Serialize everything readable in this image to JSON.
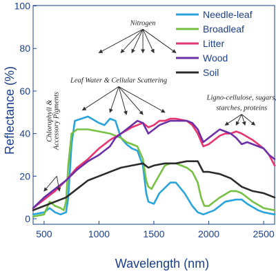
{
  "chart_data": {
    "type": "line",
    "title": "",
    "xlabel": "Wavelength (nm)",
    "ylabel": "Reflectance (%)",
    "xlim": [
      400,
      2600
    ],
    "ylim": [
      0,
      100
    ],
    "xticks": [
      500,
      1000,
      1500,
      2000,
      2500
    ],
    "yticks": [
      0,
      20,
      40,
      60,
      80,
      100
    ],
    "grid": false,
    "legend_position": "top-right",
    "series": [
      {
        "name": "Needle-leaf",
        "color": "#29a3dc",
        "points": [
          [
            400,
            2
          ],
          [
            500,
            3
          ],
          [
            550,
            5
          ],
          [
            600,
            3
          ],
          [
            650,
            2
          ],
          [
            700,
            3
          ],
          [
            720,
            10
          ],
          [
            750,
            35
          ],
          [
            780,
            46
          ],
          [
            900,
            48
          ],
          [
            1000,
            45
          ],
          [
            1050,
            44
          ],
          [
            1100,
            47
          ],
          [
            1150,
            46
          ],
          [
            1200,
            38
          ],
          [
            1250,
            35
          ],
          [
            1300,
            33
          ],
          [
            1350,
            32
          ],
          [
            1400,
            25
          ],
          [
            1430,
            12
          ],
          [
            1450,
            8
          ],
          [
            1500,
            7
          ],
          [
            1550,
            12
          ],
          [
            1650,
            17
          ],
          [
            1700,
            17
          ],
          [
            1780,
            12
          ],
          [
            1850,
            6
          ],
          [
            1900,
            3
          ],
          [
            1950,
            2
          ],
          [
            2050,
            4
          ],
          [
            2150,
            8
          ],
          [
            2250,
            9
          ],
          [
            2300,
            9
          ],
          [
            2350,
            7
          ],
          [
            2450,
            4
          ],
          [
            2500,
            3
          ],
          [
            2600,
            2
          ]
        ]
      },
      {
        "name": "Broadleaf",
        "color": "#76c043",
        "points": [
          [
            400,
            1
          ],
          [
            500,
            2
          ],
          [
            550,
            8
          ],
          [
            600,
            6
          ],
          [
            650,
            5
          ],
          [
            680,
            4
          ],
          [
            700,
            8
          ],
          [
            720,
            25
          ],
          [
            750,
            40
          ],
          [
            800,
            42
          ],
          [
            900,
            42
          ],
          [
            1000,
            41
          ],
          [
            1100,
            40
          ],
          [
            1150,
            39
          ],
          [
            1200,
            38
          ],
          [
            1250,
            36
          ],
          [
            1300,
            35
          ],
          [
            1350,
            34
          ],
          [
            1400,
            28
          ],
          [
            1430,
            18
          ],
          [
            1450,
            15
          ],
          [
            1480,
            14
          ],
          [
            1500,
            16
          ],
          [
            1600,
            25
          ],
          [
            1650,
            26
          ],
          [
            1700,
            26
          ],
          [
            1800,
            24
          ],
          [
            1850,
            22
          ],
          [
            1900,
            17
          ],
          [
            1930,
            10
          ],
          [
            1960,
            6
          ],
          [
            2000,
            6
          ],
          [
            2100,
            10
          ],
          [
            2200,
            13
          ],
          [
            2250,
            13
          ],
          [
            2300,
            12
          ],
          [
            2400,
            8
          ],
          [
            2500,
            5
          ],
          [
            2600,
            4
          ]
        ]
      },
      {
        "name": "Litter",
        "color": "#e8336e",
        "points": [
          [
            400,
            5
          ],
          [
            500,
            9
          ],
          [
            600,
            13
          ],
          [
            700,
            18
          ],
          [
            800,
            24
          ],
          [
            900,
            28
          ],
          [
            1000,
            33
          ],
          [
            1100,
            37
          ],
          [
            1200,
            40
          ],
          [
            1300,
            43
          ],
          [
            1400,
            45
          ],
          [
            1450,
            43
          ],
          [
            1500,
            44
          ],
          [
            1550,
            46
          ],
          [
            1600,
            46
          ],
          [
            1650,
            47
          ],
          [
            1700,
            47
          ],
          [
            1800,
            46
          ],
          [
            1850,
            44
          ],
          [
            1900,
            40
          ],
          [
            1950,
            34
          ],
          [
            2000,
            35
          ],
          [
            2050,
            37
          ],
          [
            2100,
            39
          ],
          [
            2150,
            40
          ],
          [
            2200,
            40
          ],
          [
            2250,
            41
          ],
          [
            2300,
            40
          ],
          [
            2400,
            37
          ],
          [
            2500,
            33
          ],
          [
            2550,
            30
          ],
          [
            2600,
            25
          ]
        ]
      },
      {
        "name": "Wood",
        "color": "#6b2fa8",
        "points": [
          [
            400,
            5
          ],
          [
            500,
            10
          ],
          [
            600,
            14
          ],
          [
            700,
            18
          ],
          [
            800,
            23
          ],
          [
            900,
            27
          ],
          [
            1000,
            30
          ],
          [
            1100,
            34
          ],
          [
            1150,
            38
          ],
          [
            1200,
            40
          ],
          [
            1250,
            42
          ],
          [
            1300,
            44
          ],
          [
            1350,
            46
          ],
          [
            1400,
            45
          ],
          [
            1450,
            40
          ],
          [
            1500,
            42
          ],
          [
            1550,
            44
          ],
          [
            1600,
            45
          ],
          [
            1650,
            46
          ],
          [
            1700,
            46
          ],
          [
            1800,
            46
          ],
          [
            1850,
            45
          ],
          [
            1900,
            42
          ],
          [
            1950,
            36
          ],
          [
            2000,
            38
          ],
          [
            2050,
            40
          ],
          [
            2100,
            42
          ],
          [
            2150,
            41
          ],
          [
            2200,
            40
          ],
          [
            2250,
            38
          ],
          [
            2300,
            35
          ],
          [
            2350,
            36
          ],
          [
            2400,
            35
          ],
          [
            2500,
            33
          ],
          [
            2550,
            30
          ],
          [
            2600,
            28
          ]
        ]
      },
      {
        "name": "Soil",
        "color": "#2b2b2b",
        "points": [
          [
            400,
            4
          ],
          [
            500,
            6
          ],
          [
            600,
            8
          ],
          [
            700,
            10
          ],
          [
            800,
            14
          ],
          [
            900,
            18
          ],
          [
            1000,
            20
          ],
          [
            1100,
            22
          ],
          [
            1200,
            24
          ],
          [
            1300,
            25
          ],
          [
            1400,
            26
          ],
          [
            1450,
            24
          ],
          [
            1500,
            25
          ],
          [
            1600,
            26
          ],
          [
            1700,
            26
          ],
          [
            1800,
            27
          ],
          [
            1900,
            27
          ],
          [
            1950,
            22
          ],
          [
            2000,
            22
          ],
          [
            2100,
            21
          ],
          [
            2200,
            19
          ],
          [
            2300,
            15
          ],
          [
            2400,
            13
          ],
          [
            2500,
            12
          ],
          [
            2600,
            10
          ]
        ]
      }
    ],
    "annotations": [
      {
        "text": "Nitrogen",
        "x": 1400,
        "y": 91,
        "targets": [
          [
            1000,
            78
          ],
          [
            1200,
            78
          ],
          [
            1300,
            78
          ],
          [
            1400,
            78
          ],
          [
            1500,
            78
          ],
          [
            1700,
            78
          ]
        ]
      },
      {
        "text": "Leaf Water & Cellular Scattering",
        "x": 1180,
        "y": 64,
        "targets": [
          [
            850,
            51
          ],
          [
            1100,
            50
          ],
          [
            1250,
            49
          ],
          [
            1400,
            49
          ],
          [
            1600,
            50
          ]
        ]
      },
      {
        "text": "Ligno-cellulose, sugars,",
        "x": 2300,
        "y": 56,
        "targets": []
      },
      {
        "text": "starches, proteins",
        "x": 2300,
        "y": 51,
        "targets": [
          [
            2150,
            44
          ],
          [
            2250,
            44
          ],
          [
            2330,
            44
          ],
          [
            2420,
            44
          ]
        ]
      },
      {
        "text": "Chlorophyll &",
        "x": 565,
        "y": 46,
        "rotate": true,
        "targets": [
          [
            500,
            13
          ],
          [
            640,
            13
          ]
        ]
      },
      {
        "text": "Accessory Pigments",
        "x": 630,
        "y": 46,
        "rotate": true,
        "targets": []
      }
    ]
  }
}
